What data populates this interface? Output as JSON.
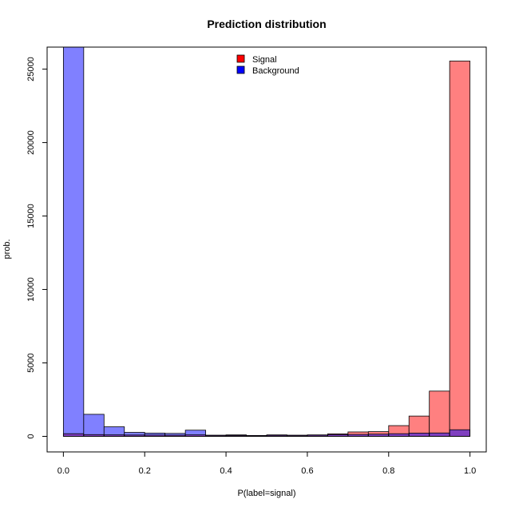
{
  "chart_data": {
    "type": "bar",
    "title": "Prediction distribution",
    "xlabel": "P(label=signal)",
    "ylabel": "prob.",
    "xlim": [
      -0.04,
      1.04
    ],
    "ylim": [
      -1060,
      26500
    ],
    "x_ticks": [
      "0.0",
      "0.2",
      "0.4",
      "0.6",
      "0.8",
      "1.0"
    ],
    "y_ticks": [
      "0",
      "5000",
      "10000",
      "15000",
      "20000",
      "25000"
    ],
    "bin_edges": [
      0.0,
      0.05,
      0.1,
      0.15,
      0.2,
      0.25,
      0.3,
      0.35,
      0.4,
      0.45,
      0.5,
      0.55,
      0.6,
      0.65,
      0.7,
      0.75,
      0.8,
      0.85,
      0.9,
      0.95,
      1.0
    ],
    "series": [
      {
        "name": "Signal",
        "color": "#ff8080",
        "legend_color": "#ff0000",
        "values": [
          180,
          120,
          100,
          90,
          90,
          80,
          100,
          60,
          60,
          60,
          70,
          80,
          100,
          170,
          300,
          320,
          730,
          1380,
          3080,
          25550
        ]
      },
      {
        "name": "Background",
        "color": "#8080ff",
        "legend_color": "#0000ff",
        "values": [
          26500,
          1500,
          650,
          270,
          220,
          200,
          420,
          80,
          100,
          60,
          100,
          60,
          80,
          120,
          130,
          150,
          180,
          220,
          230,
          450
        ]
      }
    ],
    "overlap_color": "#8040c0",
    "legend_position": "top-center"
  }
}
